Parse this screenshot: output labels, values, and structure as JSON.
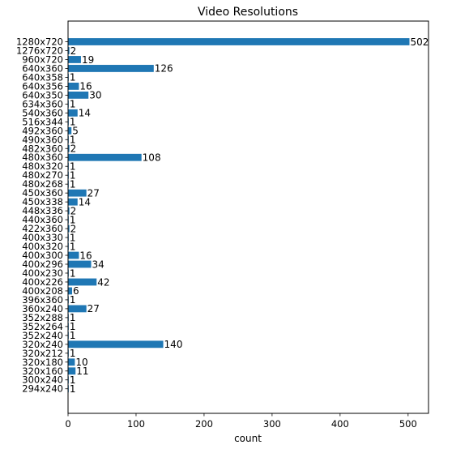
{
  "chart_data": {
    "type": "bar",
    "orientation": "horizontal",
    "title": "Video Resolutions",
    "xlabel": "count",
    "ylabel": "",
    "xlim": [
      0,
      530
    ],
    "xticks": [
      0,
      100,
      200,
      300,
      400,
      500
    ],
    "grid": false,
    "legend": "none",
    "bar_color": "#1f77b4",
    "categories": [
      "1280x720",
      "1276x720",
      "960x720",
      "640x360",
      "640x358",
      "640x356",
      "640x350",
      "634x360",
      "540x360",
      "516x344",
      "492x360",
      "490x360",
      "482x360",
      "480x360",
      "480x320",
      "480x270",
      "480x268",
      "450x360",
      "450x338",
      "448x336",
      "440x360",
      "422x360",
      "400x330",
      "400x320",
      "400x300",
      "400x296",
      "400x230",
      "400x226",
      "400x208",
      "396x360",
      "360x240",
      "352x288",
      "352x264",
      "352x240",
      "320x240",
      "320x212",
      "320x180",
      "320x160",
      "300x240",
      "294x240"
    ],
    "values": [
      502,
      2,
      19,
      126,
      1,
      16,
      30,
      1,
      14,
      1,
      5,
      1,
      2,
      108,
      1,
      1,
      1,
      27,
      14,
      2,
      1,
      2,
      1,
      1,
      16,
      34,
      1,
      42,
      6,
      1,
      27,
      1,
      1,
      1,
      140,
      1,
      10,
      11,
      1,
      1
    ]
  }
}
